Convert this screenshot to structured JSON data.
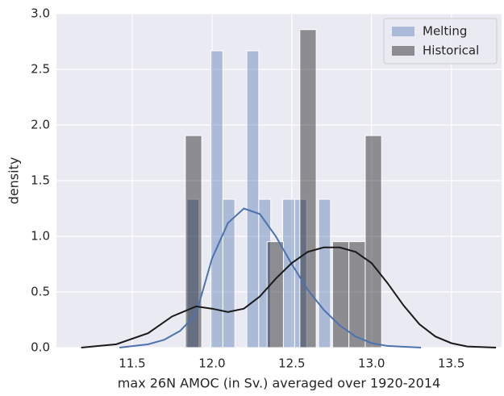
{
  "chart_data": {
    "type": "histogram",
    "xlabel": "max 26N AMOC (in Sv.) averaged over 1920-2014",
    "ylabel": "density",
    "xlim": [
      11.025,
      13.815
    ],
    "ylim": [
      0,
      3
    ],
    "xticks": [
      11.5,
      {
        "value": 12,
        "label": "12.0"
      },
      12.5,
      {
        "value": 13,
        "label": "13.0"
      },
      13.5
    ],
    "yticks": [
      {
        "value": 0,
        "label": "0.0"
      },
      0.5,
      {
        "value": 1,
        "label": "1.0"
      },
      1.5,
      {
        "value": 2,
        "label": "2.0"
      },
      2.5,
      {
        "value": 3,
        "label": "3.0"
      }
    ],
    "grid": true,
    "legend": "upper right",
    "series": [
      {
        "name": "Melting",
        "color": "#4c72b0",
        "bins": [
          11.843,
          11.918,
          11.993,
          12.068,
          12.143,
          12.218,
          12.293,
          12.368,
          12.443,
          12.518,
          12.593,
          12.668,
          12.743
        ],
        "values": [
          1.333,
          0,
          2.667,
          1.333,
          0,
          2.667,
          1.333,
          0,
          1.333,
          1.333,
          0,
          1.333
        ],
        "kde": {
          "color": "#4c72b0",
          "x": [
            11.42,
            11.6,
            11.7,
            11.8,
            11.9,
            12.0,
            12.1,
            12.2,
            12.3,
            12.4,
            12.5,
            12.6,
            12.7,
            12.8,
            12.9,
            13.0,
            13.1,
            13.31
          ],
          "values": [
            0.0,
            0.03,
            0.07,
            0.15,
            0.3,
            0.8,
            1.12,
            1.25,
            1.2,
            1.0,
            0.75,
            0.52,
            0.34,
            0.2,
            0.1,
            0.04,
            0.015,
            0.0
          ]
        }
      },
      {
        "name": "Historical",
        "color": "#000000",
        "bins": [
          11.833,
          11.9355,
          12.038,
          12.1405,
          12.243,
          12.3455,
          12.448,
          12.5505,
          12.653,
          12.7555,
          12.858,
          12.9605,
          13.063
        ],
        "values": [
          1.905,
          0,
          0,
          0,
          0,
          0.952,
          0,
          2.857,
          0,
          0.952,
          0.952,
          1.905
        ],
        "kde": {
          "color": "#1a1a1a",
          "x": [
            11.18,
            11.4,
            11.6,
            11.75,
            11.9,
            12.0,
            12.1,
            12.2,
            12.3,
            12.4,
            12.5,
            12.6,
            12.7,
            12.8,
            12.9,
            13.0,
            13.1,
            13.2,
            13.3,
            13.4,
            13.5,
            13.6,
            13.78
          ],
          "values": [
            0.0,
            0.03,
            0.13,
            0.28,
            0.37,
            0.35,
            0.32,
            0.35,
            0.46,
            0.62,
            0.76,
            0.86,
            0.9,
            0.9,
            0.86,
            0.76,
            0.58,
            0.38,
            0.21,
            0.1,
            0.04,
            0.01,
            0.0
          ]
        }
      }
    ]
  }
}
